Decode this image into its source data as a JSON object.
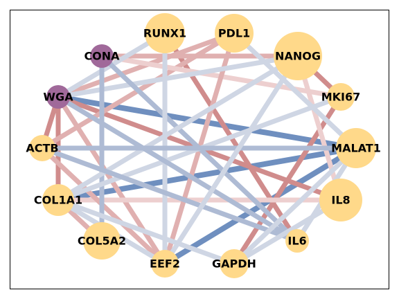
{
  "colors": {
    "gene_node": "#ffd98a",
    "lectin_node": "#a0699a",
    "edge_blue_strong": "#6f8fbf",
    "edge_blue_medium": "#aebbd4",
    "edge_blue_light": "#cfd6e4",
    "edge_red_strong": "#d08c8c",
    "edge_red_medium": "#e0b0b0",
    "edge_red_light": "#edcfcf"
  },
  "nodes": [
    {
      "id": "RUNX1",
      "label": "RUNX1",
      "kind": "gene"
    },
    {
      "id": "PDL1",
      "label": "PDL1",
      "kind": "gene"
    },
    {
      "id": "NANOG",
      "label": "NANOG",
      "kind": "gene"
    },
    {
      "id": "CONA",
      "label": "CONA",
      "kind": "lectin"
    },
    {
      "id": "MKI67",
      "label": "MKI67",
      "kind": "gene"
    },
    {
      "id": "WGA",
      "label": "WGA",
      "kind": "lectin"
    },
    {
      "id": "ACTB",
      "label": "ACTB",
      "kind": "gene"
    },
    {
      "id": "MALAT1",
      "label": "MALAT1",
      "kind": "gene"
    },
    {
      "id": "COL1A1",
      "label": "COL1A1",
      "kind": "gene"
    },
    {
      "id": "IL8",
      "label": "IL8",
      "kind": "gene"
    },
    {
      "id": "COL5A2",
      "label": "COL5A2",
      "kind": "gene"
    },
    {
      "id": "IL6",
      "label": "IL6",
      "kind": "gene"
    },
    {
      "id": "EEF2",
      "label": "EEF2",
      "kind": "gene"
    },
    {
      "id": "GAPDH",
      "label": "GAPDH",
      "kind": "gene"
    }
  ],
  "edges": [
    {
      "source": "WGA",
      "target": "MALAT1",
      "color": "edge_blue_strong"
    },
    {
      "source": "COL1A1",
      "target": "MALAT1",
      "color": "edge_blue_strong"
    },
    {
      "source": "EEF2",
      "target": "MALAT1",
      "color": "edge_blue_strong"
    },
    {
      "source": "WGA",
      "target": "IL8",
      "color": "edge_red_strong"
    },
    {
      "source": "RUNX1",
      "target": "IL6",
      "color": "edge_red_strong"
    },
    {
      "source": "GAPDH",
      "target": "MKI67",
      "color": "edge_red_strong"
    },
    {
      "source": "NANOG",
      "target": "MKI67",
      "color": "edge_red_strong"
    },
    {
      "source": "WGA",
      "target": "COL1A1",
      "color": "edge_red_strong"
    },
    {
      "source": "WGA",
      "target": "ACTB",
      "color": "edge_red_strong"
    },
    {
      "source": "CONA",
      "target": "NANOG",
      "color": "edge_red_medium"
    },
    {
      "source": "WGA",
      "target": "PDL1",
      "color": "edge_red_medium"
    },
    {
      "source": "ACTB",
      "target": "PDL1",
      "color": "edge_red_medium"
    },
    {
      "source": "WGA",
      "target": "EEF2",
      "color": "edge_red_medium"
    },
    {
      "source": "COL1A1",
      "target": "IL8",
      "color": "edge_red_light"
    },
    {
      "source": "COL1A1",
      "target": "COL5A2",
      "color": "edge_red_medium"
    },
    {
      "source": "CONA",
      "target": "MKI67",
      "color": "edge_red_light"
    },
    {
      "source": "PDL1",
      "target": "EEF2",
      "color": "edge_red_medium"
    },
    {
      "source": "NANOG",
      "target": "IL8",
      "color": "edge_red_light"
    },
    {
      "source": "ACTB",
      "target": "EEF2",
      "color": "edge_red_medium"
    },
    {
      "source": "WGA",
      "target": "NANOG",
      "color": "edge_blue_light"
    },
    {
      "source": "WGA",
      "target": "RUNX1",
      "color": "edge_blue_light"
    },
    {
      "source": "CONA",
      "target": "IL6",
      "color": "edge_blue_medium"
    },
    {
      "source": "CONA",
      "target": "COL5A2",
      "color": "edge_blue_medium"
    },
    {
      "source": "RUNX1",
      "target": "EEF2",
      "color": "edge_blue_light"
    },
    {
      "source": "PDL1",
      "target": "MALAT1",
      "color": "edge_blue_light"
    },
    {
      "source": "COL1A1",
      "target": "NANOG",
      "color": "edge_blue_light"
    },
    {
      "source": "COL1A1",
      "target": "MKI67",
      "color": "edge_blue_light"
    },
    {
      "source": "ACTB",
      "target": "MALAT1",
      "color": "edge_blue_medium"
    },
    {
      "source": "ACTB",
      "target": "IL6",
      "color": "edge_blue_medium"
    },
    {
      "source": "WGA",
      "target": "IL6",
      "color": "edge_blue_medium"
    },
    {
      "source": "IL6",
      "target": "MALAT1",
      "color": "edge_blue_light"
    },
    {
      "source": "GAPDH",
      "target": "MALAT1",
      "color": "edge_blue_light"
    },
    {
      "source": "EEF2",
      "target": "NANOG",
      "color": "edge_blue_light"
    },
    {
      "source": "GAPDH",
      "target": "IL8",
      "color": "edge_blue_light"
    },
    {
      "source": "COL1A1",
      "target": "EEF2",
      "color": "edge_blue_light"
    },
    {
      "source": "COL1A1",
      "target": "GAPDH",
      "color": "edge_blue_light"
    }
  ]
}
